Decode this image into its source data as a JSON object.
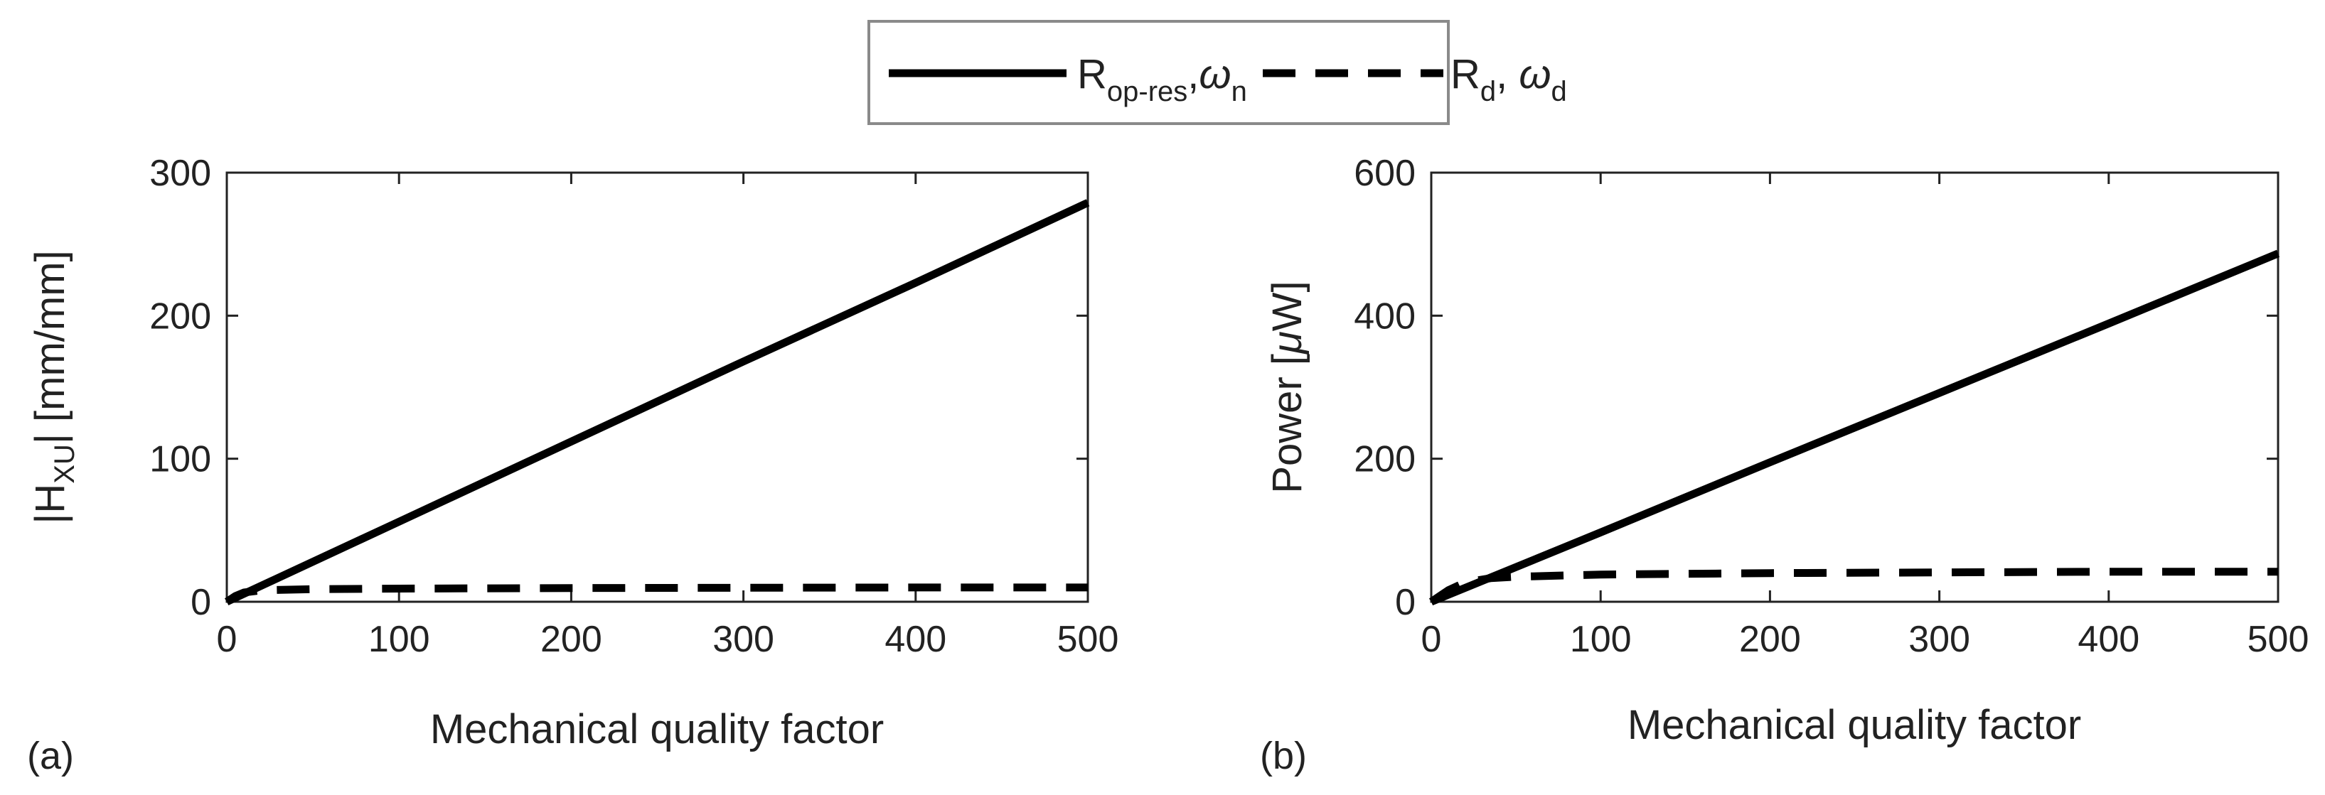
{
  "legend": {
    "items": [
      {
        "style": "solid",
        "main": "R",
        "sub": "op-res",
        "sep": ",",
        "omega": "ω",
        "omega_sub": "n"
      },
      {
        "style": "dashed",
        "main": "R",
        "sub": "d",
        "sep": ", ",
        "omega": "ω",
        "omega_sub": "d"
      }
    ]
  },
  "chart_data": [
    {
      "type": "line",
      "panel_label": "(a)",
      "xlabel": "Mechanical quality factor",
      "ylabel": "|H",
      "ylabel_sub": "XU",
      "ylabel_rest": "| [mm/mm]",
      "xlim": [
        0,
        500
      ],
      "ylim": [
        0,
        300
      ],
      "xticks": [
        0,
        100,
        200,
        300,
        400,
        500
      ],
      "yticks": [
        0,
        100,
        200,
        300
      ],
      "xtick_labels": [
        "0",
        "100",
        "200",
        "300",
        "400",
        "500"
      ],
      "ytick_labels": [
        "0",
        "100",
        "200",
        "300"
      ],
      "series": [
        {
          "name": "R_op-res, ω_n",
          "style": "solid",
          "x": [
            0,
            100,
            200,
            300,
            400,
            500
          ],
          "y": [
            0,
            56,
            112,
            168,
            223,
            279
          ]
        },
        {
          "name": "R_d, ω_d",
          "style": "dashed",
          "x": [
            0,
            5,
            10,
            20,
            50,
            100,
            200,
            300,
            400,
            500
          ],
          "y": [
            0,
            4,
            6.5,
            8,
            8.8,
            9.2,
            9.6,
            9.8,
            10,
            10
          ]
        }
      ]
    },
    {
      "type": "line",
      "panel_label": "(b)",
      "xlabel": "Mechanical quality factor",
      "ylabel": "Power [",
      "ylabel_mu": "μ",
      "ylabel_rest": "W]",
      "xlim": [
        0,
        500
      ],
      "ylim": [
        0,
        600
      ],
      "xticks": [
        0,
        100,
        200,
        300,
        400,
        500
      ],
      "yticks": [
        0,
        200,
        400,
        600
      ],
      "xtick_labels": [
        "0",
        "100",
        "200",
        "300",
        "400",
        "500"
      ],
      "ytick_labels": [
        "0",
        "200",
        "400",
        "600"
      ],
      "series": [
        {
          "name": "R_op-res, ω_n",
          "style": "solid",
          "x": [
            0,
            100,
            200,
            300,
            400,
            500
          ],
          "y": [
            0,
            97,
            195,
            292,
            389,
            487
          ]
        },
        {
          "name": "R_d, ω_d",
          "style": "dashed",
          "x": [
            0,
            5,
            10,
            20,
            35,
            50,
            100,
            200,
            300,
            400,
            500
          ],
          "y": [
            0,
            8,
            16,
            27,
            33,
            35,
            38,
            40,
            41,
            42,
            42
          ]
        }
      ]
    }
  ]
}
